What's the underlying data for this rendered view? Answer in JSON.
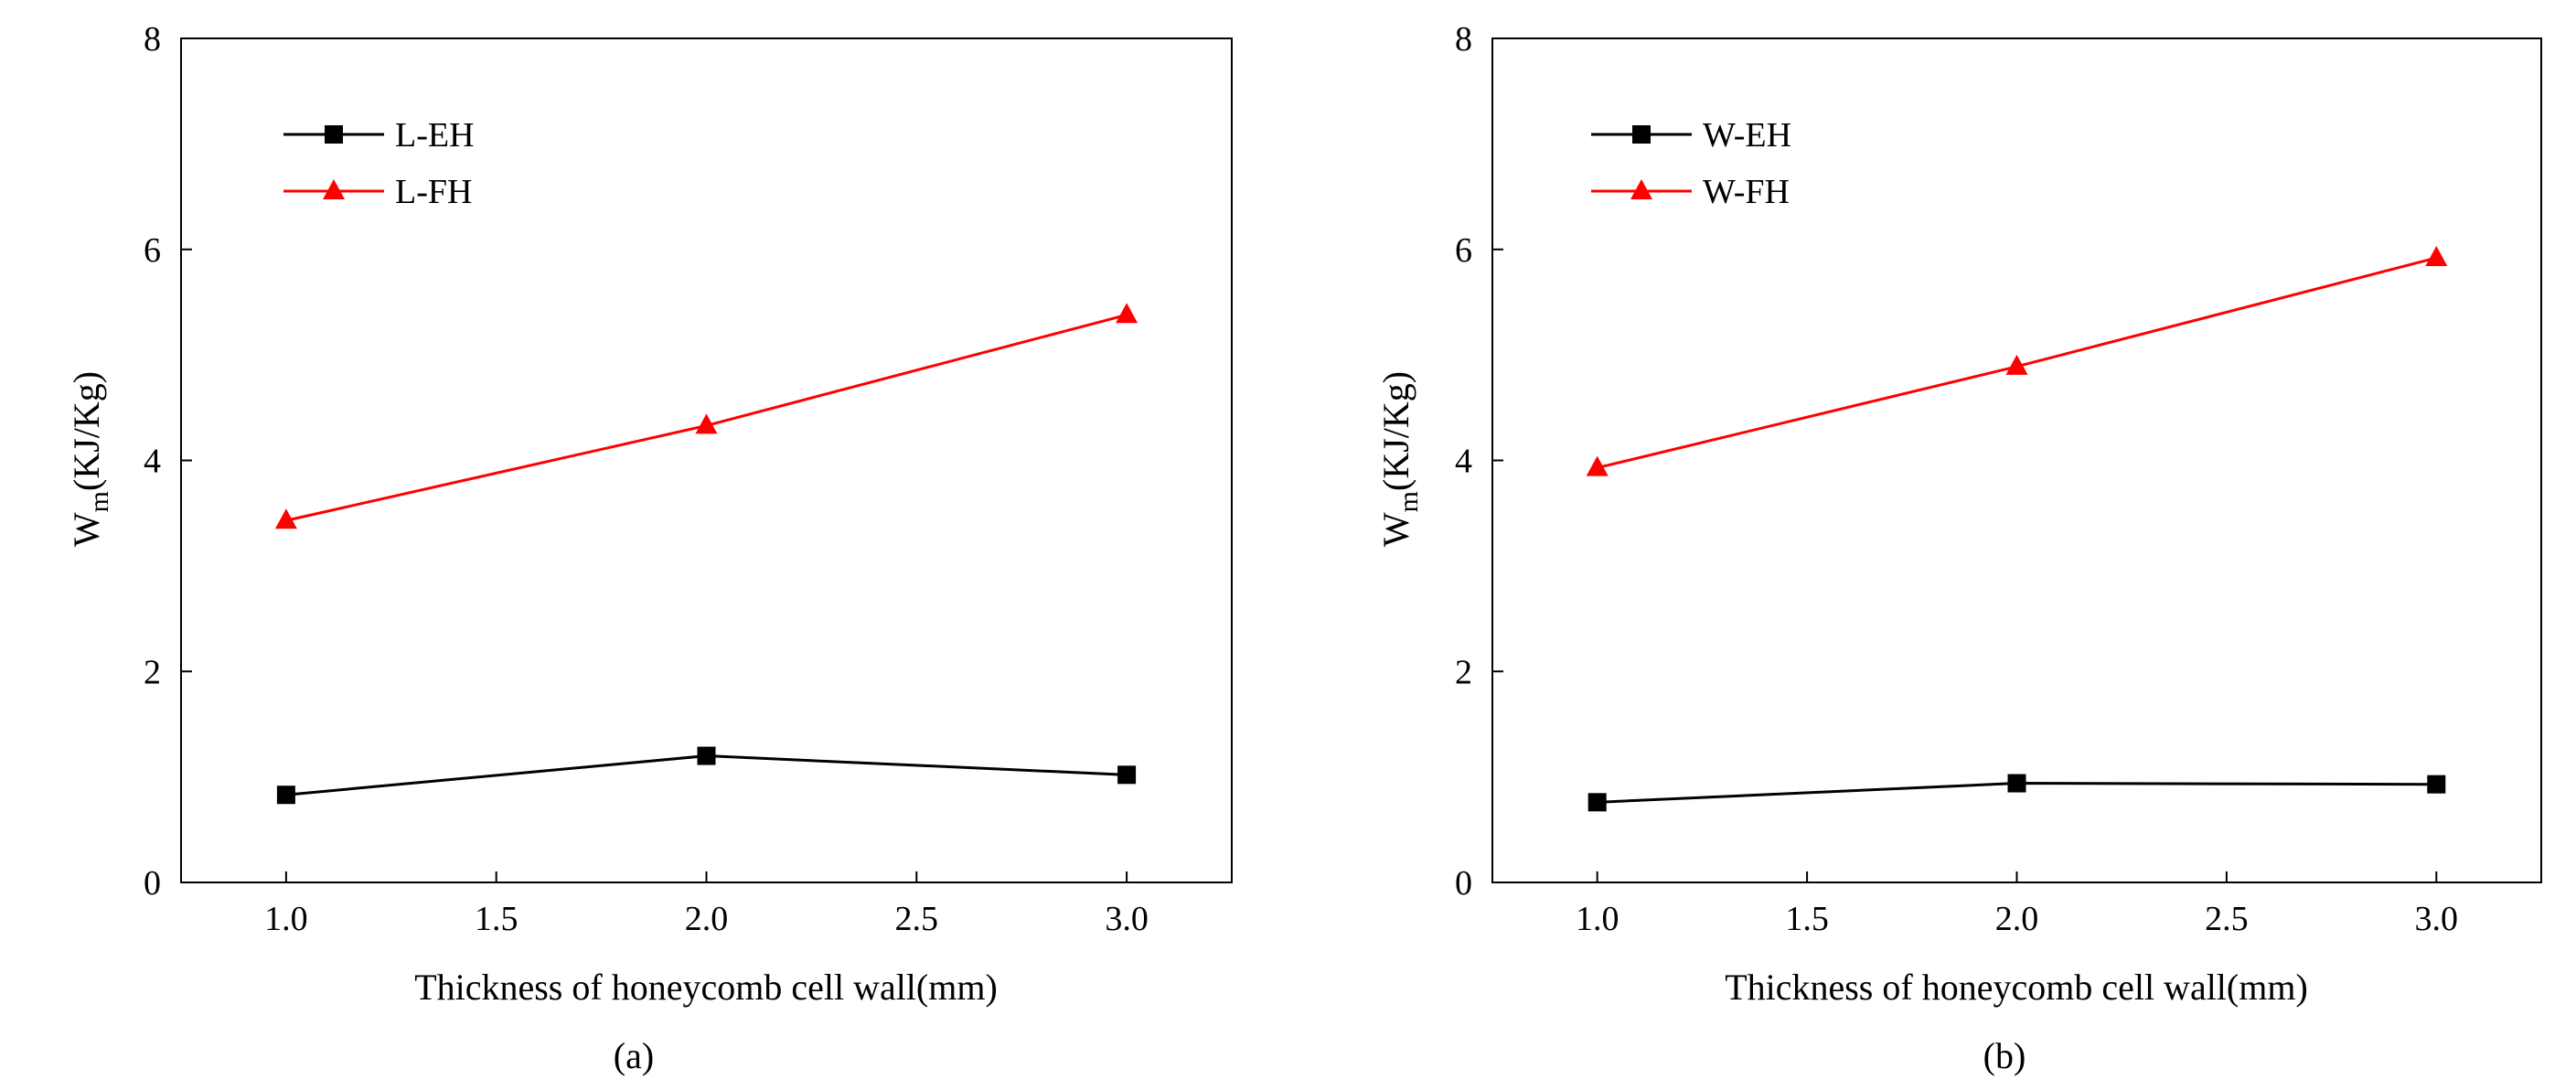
{
  "chart_data": [
    {
      "id": "a",
      "type": "line",
      "caption": "(a)",
      "xlabel": "Thickness of honeycomb cell wall(mm)",
      "ylabel_main": "W",
      "ylabel_sub": "m",
      "ylabel_rest": "(KJ/Kg)",
      "xlim": [
        0.75,
        3.25
      ],
      "ylim": [
        0,
        8
      ],
      "xticks": [
        1.0,
        1.5,
        2.0,
        2.5,
        3.0
      ],
      "xtick_labels": [
        "1.0",
        "1.5",
        "2.0",
        "2.5",
        "3.0"
      ],
      "yticks": [
        0,
        2,
        4,
        6,
        8
      ],
      "ytick_labels": [
        "0",
        "2",
        "4",
        "6",
        "8"
      ],
      "legend_position": "top-left",
      "series": [
        {
          "name": "L-EH",
          "color": "#000000",
          "marker": "square",
          "x": [
            1.0,
            2.0,
            3.0
          ],
          "values": [
            0.83,
            1.2,
            1.02
          ]
        },
        {
          "name": "L-FH",
          "color": "#ff0000",
          "marker": "triangle",
          "x": [
            1.0,
            2.0,
            3.0
          ],
          "values": [
            3.43,
            4.33,
            5.38
          ]
        }
      ]
    },
    {
      "id": "b",
      "type": "line",
      "caption": "(b)",
      "xlabel": "Thickness of honeycomb cell wall(mm)",
      "ylabel_main": "W",
      "ylabel_sub": "m",
      "ylabel_rest": "(KJ/Kg)",
      "xlim": [
        0.75,
        3.25
      ],
      "ylim": [
        0,
        8
      ],
      "xticks": [
        1.0,
        1.5,
        2.0,
        2.5,
        3.0
      ],
      "xtick_labels": [
        "1.0",
        "1.5",
        "2.0",
        "2.5",
        "3.0"
      ],
      "yticks": [
        0,
        2,
        4,
        6,
        8
      ],
      "ytick_labels": [
        "0",
        "2",
        "4",
        "6",
        "8"
      ],
      "legend_position": "top-left",
      "series": [
        {
          "name": "W-EH",
          "color": "#000000",
          "marker": "square",
          "x": [
            1.0,
            2.0,
            3.0
          ],
          "values": [
            0.76,
            0.94,
            0.93
          ]
        },
        {
          "name": "W-FH",
          "color": "#ff0000",
          "marker": "triangle",
          "x": [
            1.0,
            2.0,
            3.0
          ],
          "values": [
            3.93,
            4.89,
            5.92
          ]
        }
      ]
    }
  ]
}
